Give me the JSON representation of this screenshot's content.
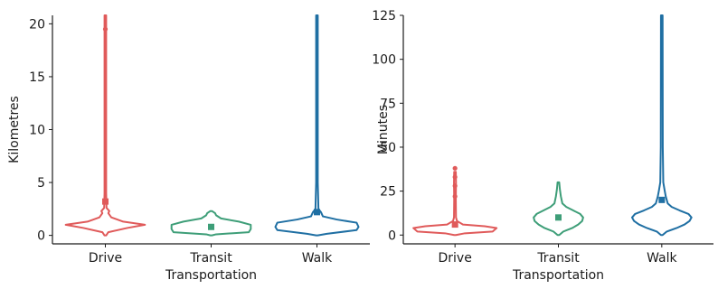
{
  "chart_data": [
    {
      "type": "violin",
      "xlabel": "Transportation",
      "ylabel": "Kilometres",
      "ylim": [
        -0.8,
        20.8
      ],
      "yticks": [
        0,
        5,
        10,
        15,
        20
      ],
      "categories": [
        "Drive",
        "Transit",
        "Walk"
      ],
      "series": [
        {
          "category": "Drive",
          "color": "#e05a5a",
          "range": [
            0,
            20.8
          ],
          "mean": 3.2,
          "outliers": [
            19.5
          ],
          "profile": [
            [
              0,
              0
            ],
            [
              0.3,
              0.03
            ],
            [
              0.7,
              0.22
            ],
            [
              1.0,
              0.4
            ],
            [
              1.3,
              0.18
            ],
            [
              1.7,
              0.06
            ],
            [
              2.1,
              0.03
            ],
            [
              2.3,
              0.04
            ],
            [
              2.6,
              0.012
            ],
            [
              4,
              0.004
            ],
            [
              8,
              0.003
            ],
            [
              15,
              0.002
            ],
            [
              20.8,
              0.002
            ]
          ]
        },
        {
          "category": "Transit",
          "color": "#3e9e78",
          "range": [
            0,
            2.3
          ],
          "mean": 0.8,
          "outliers": [],
          "profile": [
            [
              0,
              0
            ],
            [
              0.1,
              0.05
            ],
            [
              0.3,
              0.38
            ],
            [
              0.6,
              0.4
            ],
            [
              1.0,
              0.4
            ],
            [
              1.3,
              0.28
            ],
            [
              1.6,
              0.1
            ],
            [
              1.9,
              0.05
            ],
            [
              2.1,
              0.04
            ],
            [
              2.3,
              0
            ]
          ]
        },
        {
          "category": "Walk",
          "color": "#1f6fa3",
          "range": [
            0,
            20.8
          ],
          "mean": 2.2,
          "outliers": [],
          "profile": [
            [
              0,
              0
            ],
            [
              0.15,
              0.1
            ],
            [
              0.5,
              0.4
            ],
            [
              0.8,
              0.42
            ],
            [
              1.2,
              0.4
            ],
            [
              1.5,
              0.2
            ],
            [
              1.8,
              0.06
            ],
            [
              2.2,
              0.04
            ],
            [
              2.5,
              0.015
            ],
            [
              5,
              0.006
            ],
            [
              12,
              0.006
            ],
            [
              20.8,
              0.006
            ]
          ]
        }
      ]
    },
    {
      "type": "violin",
      "xlabel": "Transportation",
      "ylabel": "Minutes",
      "ylim": [
        -5,
        125
      ],
      "yticks": [
        0,
        25,
        50,
        75,
        100,
        125
      ],
      "categories": [
        "Drive",
        "Transit",
        "Walk"
      ],
      "series": [
        {
          "category": "Drive",
          "color": "#e05a5a",
          "range": [
            0,
            36
          ],
          "mean": 6,
          "outliers": [
            22,
            28,
            33,
            38
          ],
          "profile": [
            [
              0,
              0
            ],
            [
              1,
              0.1
            ],
            [
              2,
              0.38
            ],
            [
              4,
              0.42
            ],
            [
              5,
              0.3
            ],
            [
              6,
              0.08
            ],
            [
              8,
              0.02
            ],
            [
              10,
              0.01
            ],
            [
              20,
              0.008
            ],
            [
              30,
              0.01
            ],
            [
              36,
              0.008
            ]
          ]
        },
        {
          "category": "Transit",
          "color": "#3e9e78",
          "range": [
            0,
            30
          ],
          "mean": 10,
          "outliers": [],
          "profile": [
            [
              0,
              0
            ],
            [
              2,
              0.05
            ],
            [
              4,
              0.14
            ],
            [
              6,
              0.2
            ],
            [
              8,
              0.24
            ],
            [
              10,
              0.25
            ],
            [
              12,
              0.22
            ],
            [
              14,
              0.15
            ],
            [
              16,
              0.08
            ],
            [
              18,
              0.04
            ],
            [
              22,
              0.025
            ],
            [
              26,
              0.015
            ],
            [
              30,
              0.005
            ]
          ]
        },
        {
          "category": "Walk",
          "color": "#1f6fa3",
          "range": [
            0,
            125
          ],
          "mean": 20,
          "outliers": [],
          "profile": [
            [
              0,
              0
            ],
            [
              2,
              0.05
            ],
            [
              4,
              0.15
            ],
            [
              6,
              0.23
            ],
            [
              8,
              0.28
            ],
            [
              10,
              0.3
            ],
            [
              12,
              0.27
            ],
            [
              14,
              0.18
            ],
            [
              16,
              0.1
            ],
            [
              18,
              0.06
            ],
            [
              20,
              0.05
            ],
            [
              22,
              0.04
            ],
            [
              25,
              0.03
            ],
            [
              30,
              0.015
            ],
            [
              50,
              0.01
            ],
            [
              125,
              0.008
            ]
          ]
        }
      ]
    }
  ]
}
